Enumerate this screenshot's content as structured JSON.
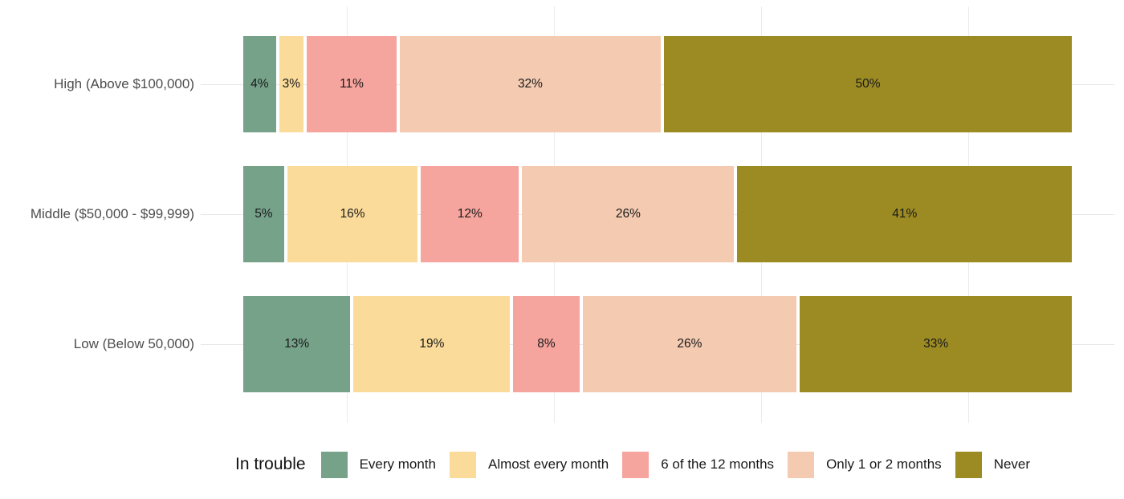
{
  "chart_data": {
    "type": "bar",
    "orientation": "horizontal",
    "stacked": true,
    "title": "",
    "xlabel": "",
    "ylabel": "",
    "xlim": [
      0,
      100
    ],
    "value_suffix": "%",
    "categories": [
      "High (Above $100,000)",
      "Middle ($50,000 - $99,999)",
      "Low (Below 50,000)"
    ],
    "series": [
      {
        "name": "Every month",
        "color": "#76a28a",
        "values": [
          4,
          5,
          13
        ]
      },
      {
        "name": "Almost every month",
        "color": "#fbdb9a",
        "values": [
          3,
          16,
          19
        ]
      },
      {
        "name": "6 of the 12 months",
        "color": "#f6a49e",
        "values": [
          11,
          12,
          8
        ]
      },
      {
        "name": "Only 1 or 2 months",
        "color": "#f4cab1",
        "values": [
          32,
          26,
          26
        ]
      },
      {
        "name": "Never",
        "color": "#9c8b23",
        "values": [
          50,
          41,
          33
        ]
      }
    ],
    "segment_labels": [
      [
        "4%",
        "3%",
        "11%",
        "32%",
        "50%"
      ],
      [
        "5%",
        "16%",
        "12%",
        "26%",
        "41%"
      ],
      [
        "13%",
        "19%",
        "8%",
        "26%",
        "33%"
      ]
    ],
    "legend_title": "In trouble",
    "legend_position": "bottom",
    "grid": {
      "minor_x_pct": [
        12.5,
        37.5,
        62.5,
        87.5
      ],
      "major_y_category_lines": true
    },
    "colors": {
      "background": "#ffffff",
      "gridline": "#ececec",
      "category_line": "#e7e7e7",
      "axis_text": "#4d4d4d",
      "bar_label": "#1a1a1a"
    }
  }
}
